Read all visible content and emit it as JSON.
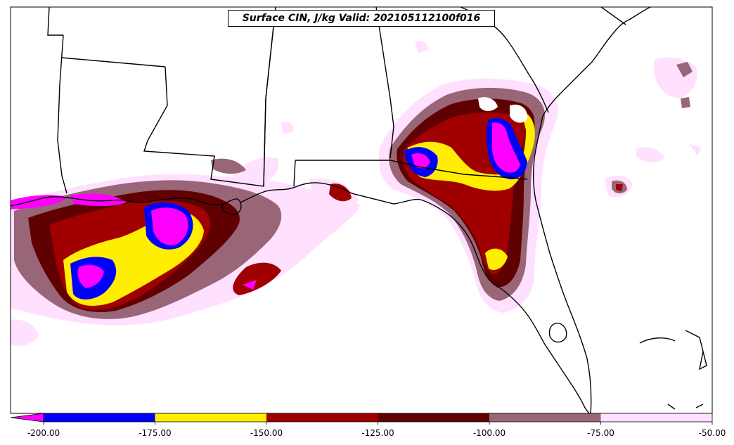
{
  "title": "Surface CIN, J/kg Valid: 202105112100f016",
  "colorbar": {
    "ticks": [
      "-200.00",
      "-175.00",
      "-150.00",
      "-125.00",
      "-100.00",
      "-75.00",
      "-50.00"
    ],
    "bins": [
      {
        "from": -200,
        "to": -175,
        "color": "#0000ff"
      },
      {
        "from": -175,
        "to": -150,
        "color": "#ffee00"
      },
      {
        "from": -150,
        "to": -125,
        "color": "#a00000"
      },
      {
        "from": -125,
        "to": -100,
        "color": "#600000"
      },
      {
        "from": -100,
        "to": -75,
        "color": "#996677"
      },
      {
        "from": -75,
        "to": -50,
        "color": "#ffe0ff"
      }
    ],
    "under_color": "#ff00ff",
    "extend": "min"
  },
  "colors": {
    "lt_-200": "#ff00ff",
    "-200_-175": "#0000ff",
    "-175_-150": "#ffee00",
    "-150_-125": "#a00000",
    "-125_-100": "#600000",
    "-100_-75": "#996677",
    "-75_-50": "#ffe0ff"
  }
}
